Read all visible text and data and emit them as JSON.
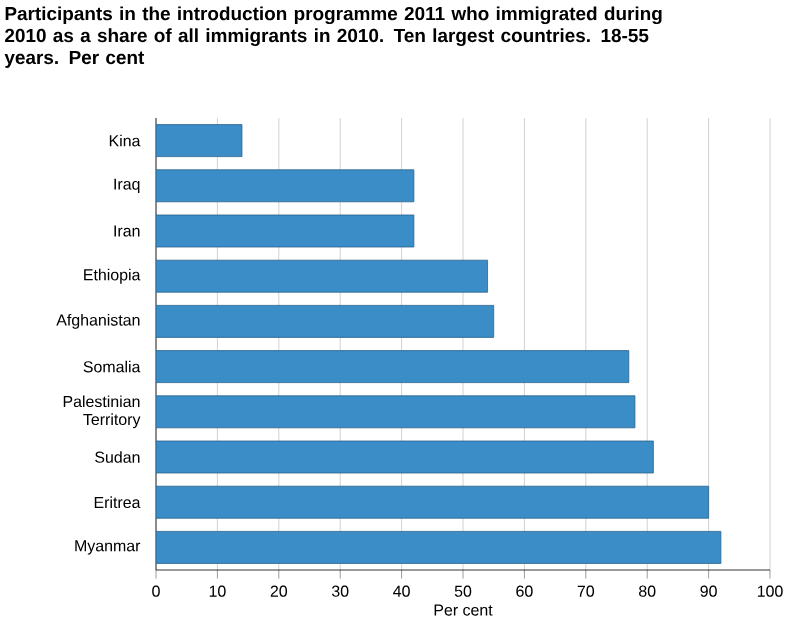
{
  "chart_data": {
    "type": "bar",
    "orientation": "horizontal",
    "title": "Participants in the introduction programme 2011 who immigrated during 2010 as a share of all immigrants in 2010. Ten largest countries. 18-55 years. Per cent",
    "xlabel": "Per cent",
    "categories": [
      "Kina",
      "Iraq",
      "Iran",
      "Ethiopia",
      "Afghanistan",
      "Somalia",
      "Palestinian Territory",
      "Sudan",
      "Eritrea",
      "Myanmar"
    ],
    "values": [
      14,
      42,
      42,
      54,
      55,
      77,
      78,
      81,
      90,
      92
    ],
    "color": "#3a8dc6",
    "xlim": [
      0,
      100
    ],
    "xticks": [
      0,
      10,
      20,
      30,
      40,
      50,
      60,
      70,
      80,
      90,
      100
    ],
    "grid": "x"
  }
}
